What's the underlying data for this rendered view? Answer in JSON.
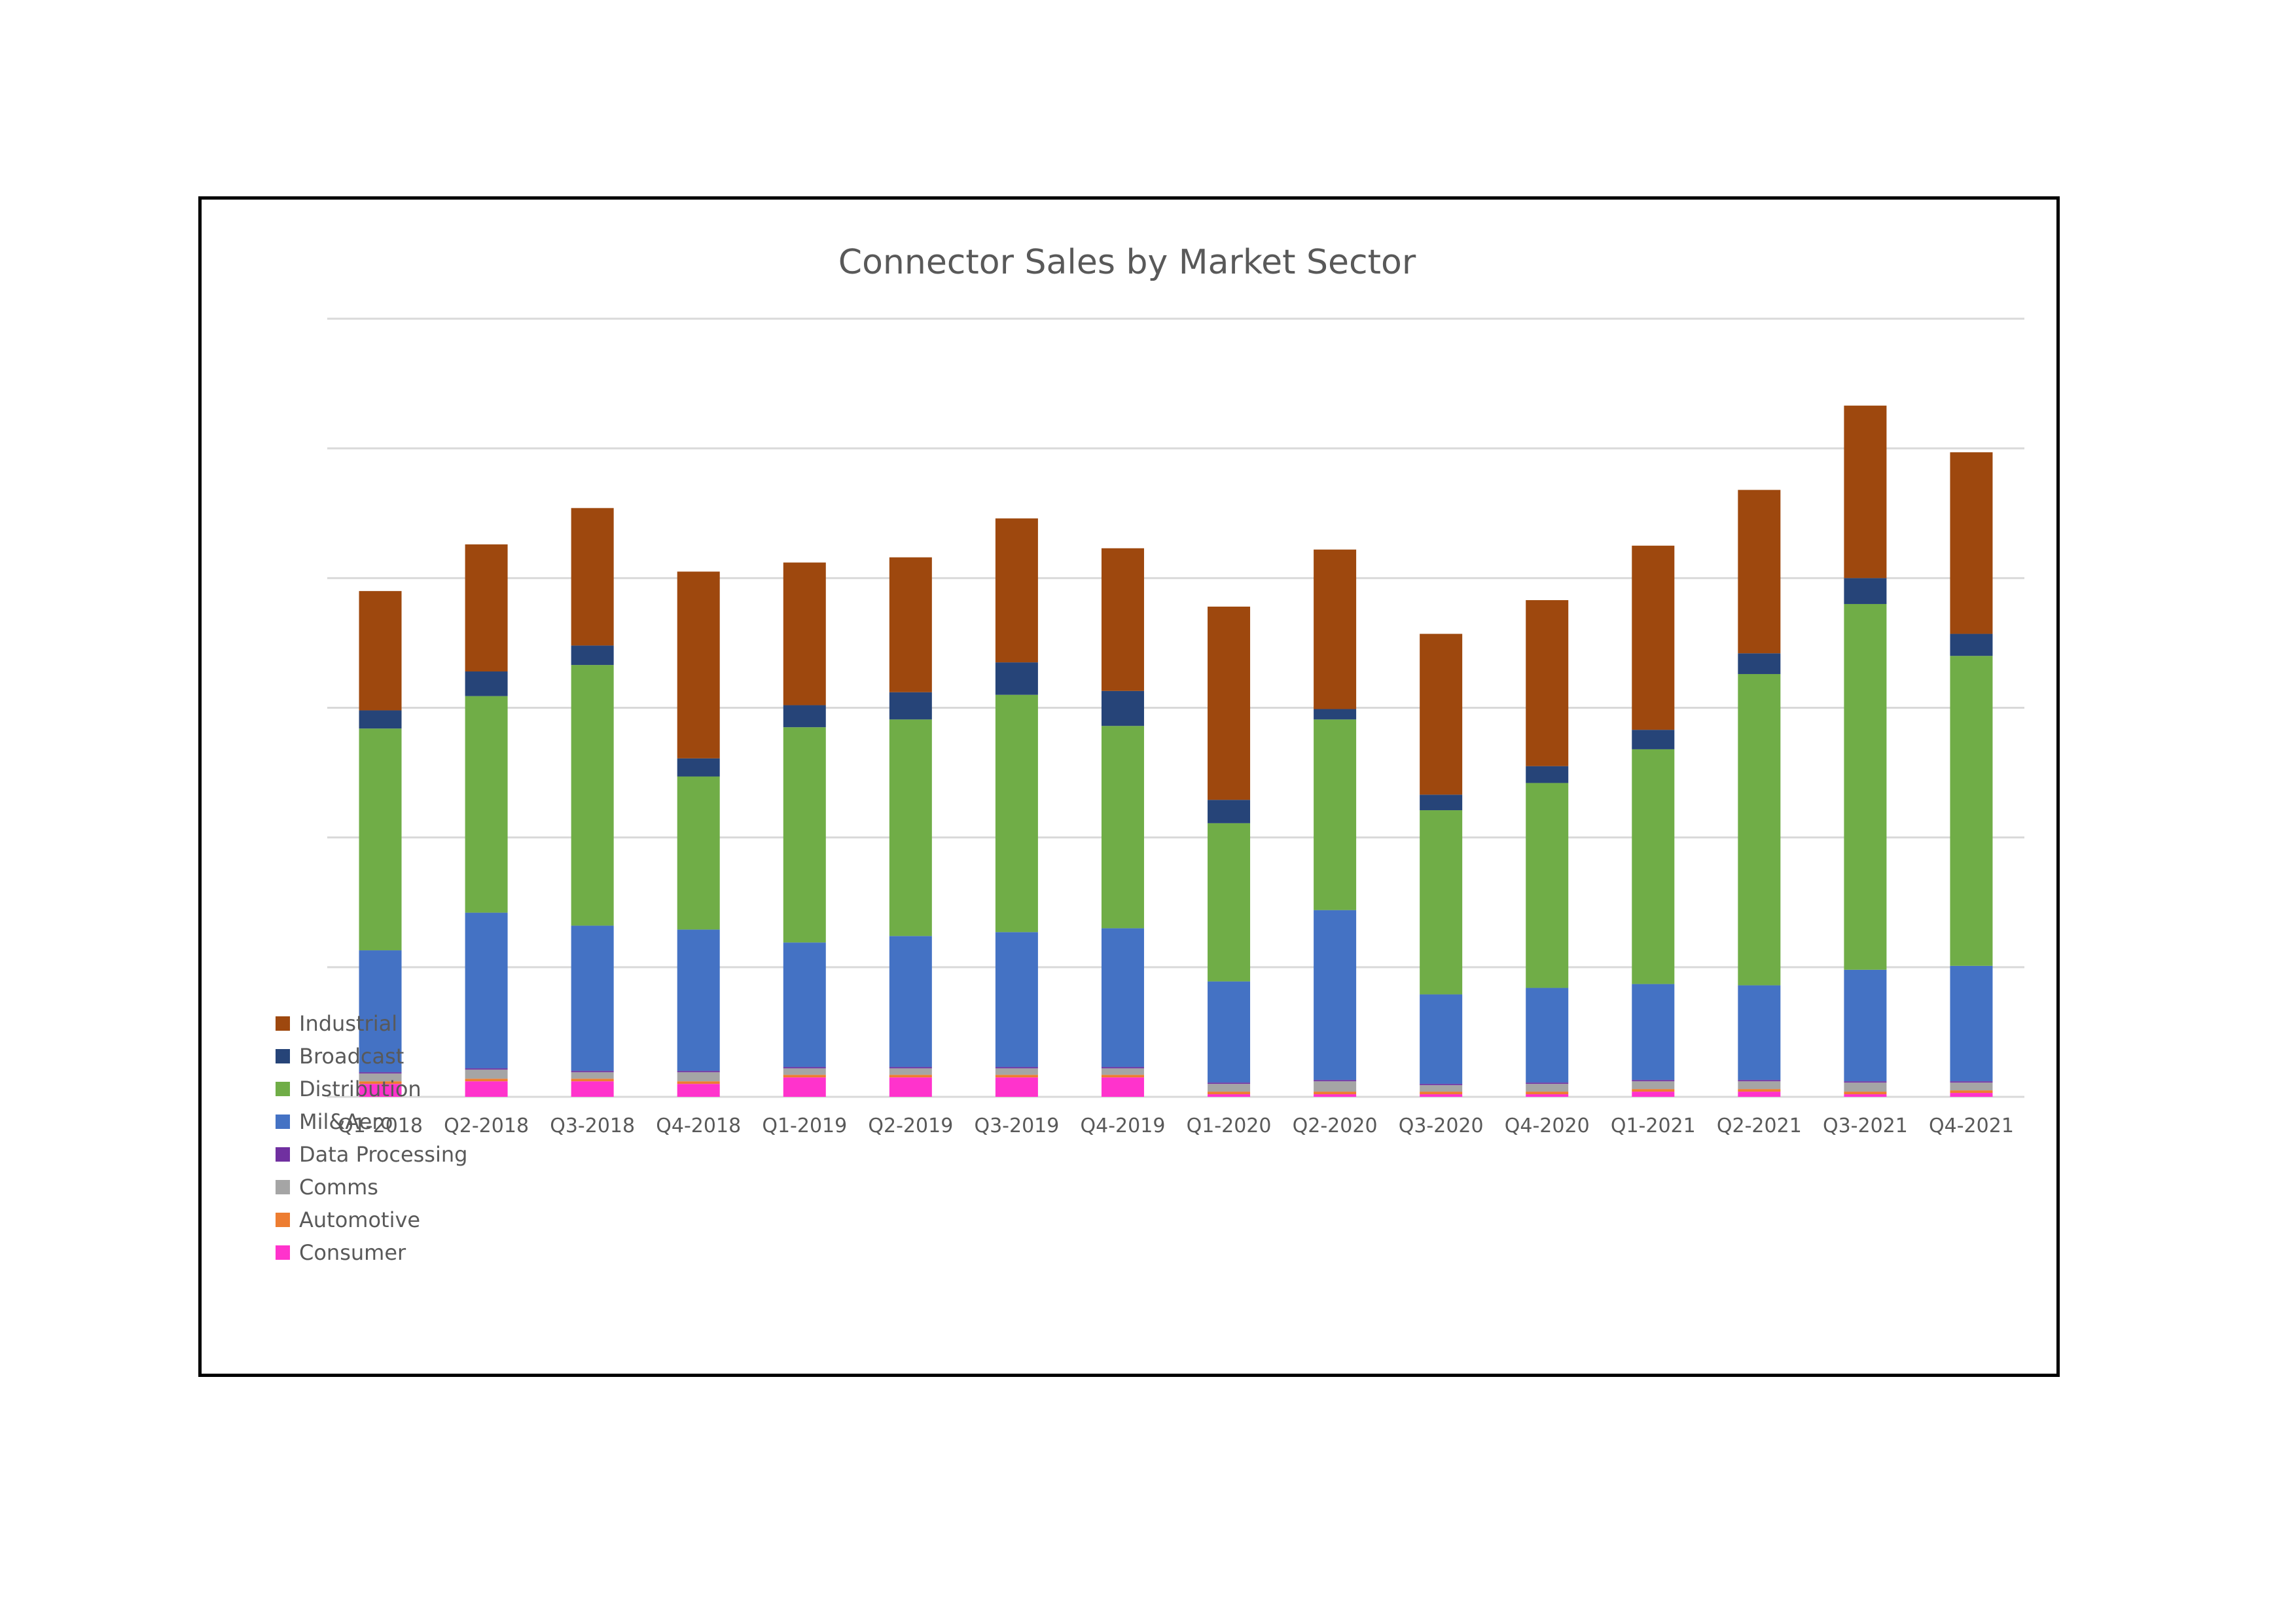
{
  "chart_data": {
    "type": "bar",
    "stacked": true,
    "title": "Connector Sales by Market Sector",
    "xlabel": "",
    "ylabel": "",
    "y_tick_labels_shown": false,
    "ylim": [
      0,
      600
    ],
    "gridlines": true,
    "gridline_values": [
      0,
      100,
      200,
      300,
      400,
      500,
      600
    ],
    "legend_position": "left-bottom",
    "categories": [
      "Q1-2018",
      "Q2-2018",
      "Q3-2018",
      "Q4-2018",
      "Q1-2019",
      "Q2-2019",
      "Q3-2019",
      "Q4-2019",
      "Q1-2020",
      "Q2-2020",
      "Q3-2020",
      "Q4-2020",
      "Q1-2021",
      "Q2-2021",
      "Q3-2021",
      "Q4-2021"
    ],
    "series": [
      {
        "name": "Consumer",
        "color": "#ff33cc",
        "values": [
          10,
          12,
          12,
          10,
          15,
          15,
          15,
          15,
          2,
          2,
          2,
          2,
          4,
          4,
          2,
          3
        ]
      },
      {
        "name": "Automotive",
        "color": "#ed7d31",
        "values": [
          2,
          2,
          2,
          2,
          2,
          2,
          2,
          2,
          2,
          2,
          2,
          2,
          2,
          2,
          2,
          2
        ]
      },
      {
        "name": "Comms",
        "color": "#a5a5a5",
        "values": [
          6,
          7,
          5,
          7,
          5,
          5,
          5,
          5,
          6,
          8,
          5,
          6,
          6,
          6,
          7,
          6
        ]
      },
      {
        "name": "Data Processing",
        "color": "#7030a0",
        "values": [
          1,
          1,
          1,
          1,
          1,
          1,
          1,
          1,
          1,
          1,
          1,
          1,
          1,
          1,
          1,
          1
        ]
      },
      {
        "name": "Mil&Aero",
        "color": "#4472c4",
        "values": [
          94,
          120,
          112,
          109,
          96,
          101,
          104,
          107,
          78,
          131,
          69,
          73,
          74,
          73,
          86,
          89
        ]
      },
      {
        "name": "Distribution",
        "color": "#70ad47",
        "values": [
          171,
          167,
          201,
          118,
          166,
          167,
          183,
          156,
          122,
          147,
          142,
          158,
          181,
          240,
          282,
          239
        ]
      },
      {
        "name": "Broadcast",
        "color": "#264478",
        "values": [
          14,
          19,
          15,
          14,
          17,
          21,
          25,
          27,
          18,
          8,
          12,
          13,
          15,
          16,
          20,
          17
        ]
      },
      {
        "name": "Industrial",
        "color": "#9e480e",
        "values": [
          92,
          98,
          106,
          144,
          110,
          104,
          111,
          110,
          149,
          123,
          124,
          128,
          142,
          126,
          133,
          140
        ]
      }
    ]
  }
}
